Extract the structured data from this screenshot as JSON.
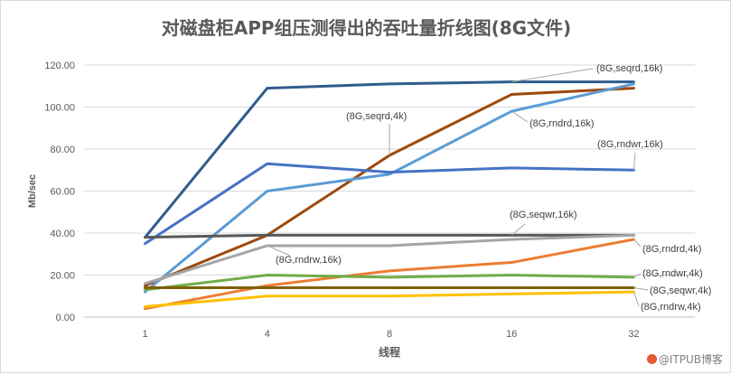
{
  "chart_data": {
    "type": "line",
    "title": "对磁盘柜APP组压测得出的吞吐量折线图(8G文件)",
    "xlabel": "线程",
    "ylabel": "Mb/sec",
    "categories": [
      "1",
      "4",
      "8",
      "16",
      "32"
    ],
    "ylim": [
      0,
      120
    ],
    "yticks": [
      "0.00",
      "20.00",
      "40.00",
      "60.00",
      "80.00",
      "100.00",
      "120.00"
    ],
    "grid": true,
    "series": [
      {
        "name": "(8G,seqrd,16k)",
        "color": "#2f5d8c",
        "values": [
          38,
          109,
          111,
          112,
          112
        ]
      },
      {
        "name": "(8G,seqrd,4k)",
        "color": "#9e480e",
        "values": [
          15,
          39,
          77,
          106,
          109
        ]
      },
      {
        "name": "(8G,rndrd,16k)",
        "color": "#5b9bd5",
        "values": [
          12,
          60,
          68,
          98,
          111
        ]
      },
      {
        "name": "(8G,rndwr,16k)",
        "color": "#4472c4",
        "values": [
          35,
          73,
          69,
          71,
          70
        ]
      },
      {
        "name": "(8G,seqwr,16k)",
        "color": "#595959",
        "values": [
          38,
          39,
          39,
          39,
          39
        ]
      },
      {
        "name": "(8G,rndrw,16k)",
        "color": "#a5a5a5",
        "values": [
          16,
          34,
          34,
          37,
          39
        ]
      },
      {
        "name": "(8G,rndrd,4k)",
        "color": "#ed7d31",
        "values": [
          4,
          15,
          22,
          26,
          37
        ]
      },
      {
        "name": "(8G,rndwr,4k)",
        "color": "#70ad47",
        "values": [
          13,
          20,
          19,
          20,
          19
        ]
      },
      {
        "name": "(8G,seqwr,4k)",
        "color": "#7f6000",
        "values": [
          14,
          14,
          14,
          14,
          14
        ]
      },
      {
        "name": "(8G,rndrw,4k)",
        "color": "#ffc000",
        "values": [
          5,
          10,
          10,
          11,
          12
        ]
      }
    ],
    "annotations": [
      "(8G,seqrd,16k)",
      "(8G,seqrd,4k)",
      "(8G,rndrd,16k)",
      "(8G,rndwr,16k)",
      "(8G,seqwr,16k)",
      "(8G,rndrw,16k)",
      "(8G,rndrd,4k)",
      "(8G,rndwr,4k)",
      "(8G,seqwr,4k)",
      "(8G,rndrw,4k)"
    ]
  },
  "watermark": "@ITPUB博客"
}
